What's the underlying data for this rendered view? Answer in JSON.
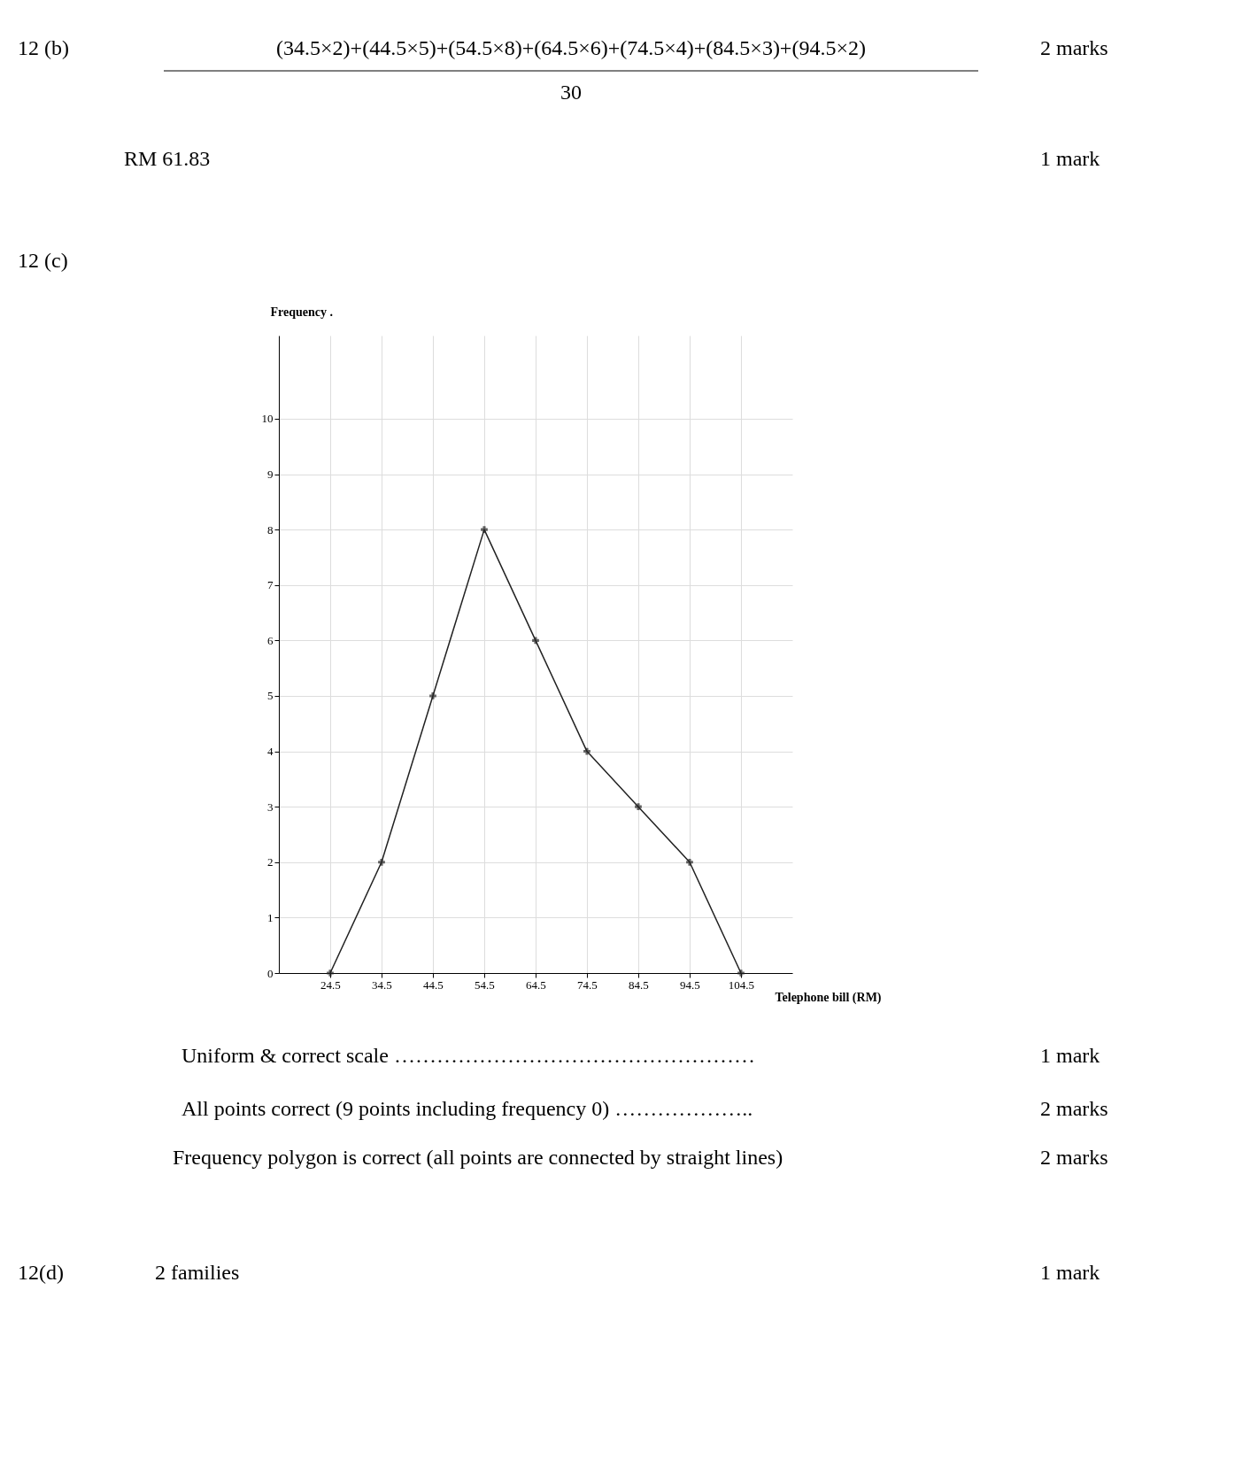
{
  "chart_data": {
    "type": "line",
    "xlabel": "Telephone bill (RM)",
    "ylabel": "Frequency .",
    "x": [
      24.5,
      34.5,
      44.5,
      54.5,
      64.5,
      74.5,
      84.5,
      94.5,
      104.5
    ],
    "values": [
      0,
      2,
      5,
      8,
      6,
      4,
      3,
      2,
      0
    ],
    "color": "#222222",
    "marker": "cross",
    "line_style": "solid",
    "grid": true,
    "xlim": [
      14.5,
      114.5
    ],
    "xticks": [
      24.5,
      34.5,
      44.5,
      54.5,
      64.5,
      74.5,
      84.5,
      94.5,
      104.5
    ],
    "ylim": [
      0,
      11.5
    ],
    "yticks": [
      0,
      1,
      2,
      3,
      4,
      5,
      6,
      7,
      8,
      9,
      10
    ],
    "annotations": [
      "12 (b)",
      "(34.5×2)+(44.5×5)+(54.5×8)+(64.5×6)+(74.5×4)+(84.5×3)+(94.5×2)",
      "30",
      "2 marks",
      "RM 61.83",
      "1 mark",
      "12 (c)",
      "Uniform & correct scale ……………………………………………",
      "1 mark",
      "All points correct (9 points including frequency 0) ………………..",
      "2 marks",
      "Frequency polygon is correct (all points are connected by straight lines)",
      "2 marks",
      "12(d)",
      "2 families",
      "1 mark"
    ]
  }
}
